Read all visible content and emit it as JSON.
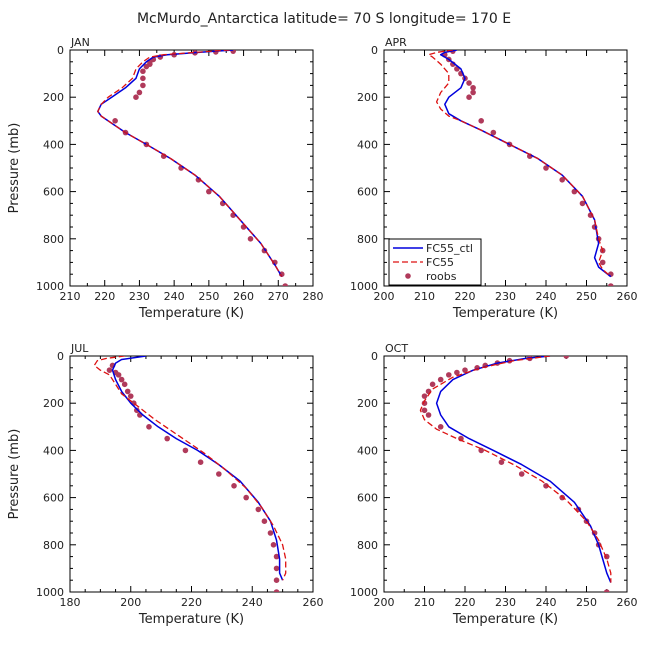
{
  "figure_title": "McMurdo_Antarctica   latitude= 70 S longitude= 170 E",
  "colors": {
    "ctl": "#0000dd",
    "fc55": "#dd1111",
    "roobs": "#b03a5b",
    "axis": "#000000"
  },
  "chart_data": [
    {
      "type": "line",
      "title": "JAN",
      "xlabel": "Temperature (K)",
      "ylabel": "Pressure (mb)",
      "xlim": [
        210,
        280
      ],
      "xticks": [
        "210",
        "220",
        "230",
        "240",
        "250",
        "260",
        "270",
        "280"
      ],
      "ylim": [
        0,
        1000
      ],
      "yticks": [
        "0",
        "200",
        "400",
        "600",
        "800",
        "1000"
      ],
      "y_inverted": true,
      "legend": null,
      "series": [
        {
          "name": "",
          "style": "ctl",
          "x": [
            257,
            247,
            238,
            234,
            232,
            230,
            229,
            226,
            222,
            219,
            218,
            219,
            222,
            226,
            232,
            239,
            246,
            253,
            259,
            265,
            269,
            271
          ],
          "y": [
            0,
            10,
            20,
            30,
            50,
            80,
            120,
            160,
            200,
            230,
            260,
            280,
            310,
            350,
            400,
            460,
            530,
            620,
            720,
            820,
            910,
            960
          ]
        },
        {
          "name": "",
          "style": "fc55",
          "x": [
            256,
            246,
            237,
            233,
            231,
            229,
            228,
            225,
            221,
            219,
            218,
            219,
            222,
            226,
            232,
            239,
            246,
            253,
            259,
            265,
            269,
            271
          ],
          "y": [
            0,
            10,
            20,
            30,
            50,
            80,
            120,
            160,
            200,
            230,
            260,
            280,
            310,
            350,
            400,
            460,
            530,
            620,
            720,
            820,
            910,
            960
          ]
        },
        {
          "name": "",
          "style": "roobs",
          "x": [
            257,
            252,
            246,
            240,
            236,
            234,
            233,
            233,
            232,
            231,
            231,
            231,
            230,
            229,
            223,
            226,
            232,
            237,
            242,
            247,
            250,
            254,
            257,
            260,
            262,
            266,
            269,
            271,
            272
          ],
          "y": [
            5,
            8,
            12,
            20,
            30,
            40,
            50,
            60,
            70,
            90,
            120,
            150,
            180,
            200,
            300,
            350,
            400,
            450,
            500,
            550,
            600,
            650,
            700,
            750,
            800,
            850,
            900,
            950,
            1000
          ]
        }
      ]
    },
    {
      "type": "line",
      "title": "APR",
      "xlabel": "Temperature (K)",
      "ylabel": "",
      "xlim": [
        200,
        260
      ],
      "xticks": [
        "200",
        "210",
        "220",
        "230",
        "240",
        "250",
        "260"
      ],
      "ylim": [
        0,
        1000
      ],
      "yticks": [
        "0",
        "200",
        "400",
        "600",
        "800",
        "1000"
      ],
      "y_inverted": true,
      "legend": {
        "position": "bottom-left",
        "entries": [
          {
            "label": "FC55_ctl",
            "style": "ctl"
          },
          {
            "label": "FC55",
            "style": "fc55"
          },
          {
            "label": "roobs",
            "style": "roobs"
          }
        ]
      },
      "series": [
        {
          "name": "FC55_ctl",
          "style": "ctl",
          "x": [
            218,
            215,
            214,
            216,
            219,
            220,
            219,
            216,
            215,
            216,
            219,
            224,
            231,
            238,
            244,
            249,
            252,
            253,
            252,
            253,
            256
          ],
          "y": [
            0,
            10,
            20,
            40,
            80,
            120,
            160,
            200,
            230,
            270,
            300,
            340,
            400,
            460,
            530,
            620,
            720,
            820,
            880,
            920,
            960
          ]
        },
        {
          "name": "FC55",
          "style": "fc55",
          "x": [
            217,
            213,
            211,
            212,
            214,
            216,
            216,
            214,
            213,
            214,
            216,
            219,
            224,
            231,
            238,
            244,
            249,
            252,
            253,
            254,
            253,
            254,
            256
          ],
          "y": [
            0,
            10,
            20,
            30,
            60,
            100,
            140,
            180,
            220,
            250,
            280,
            300,
            340,
            400,
            460,
            530,
            620,
            720,
            800,
            850,
            900,
            930,
            960
          ]
        },
        {
          "name": "roobs",
          "style": "roobs",
          "x": [
            217,
            215,
            216,
            217,
            218,
            219,
            220,
            221,
            222,
            222,
            221,
            224,
            227,
            231,
            236,
            240,
            244,
            247,
            249,
            251,
            252,
            253,
            254,
            254,
            256,
            256
          ],
          "y": [
            5,
            20,
            40,
            60,
            80,
            100,
            120,
            140,
            160,
            180,
            200,
            300,
            350,
            400,
            450,
            500,
            550,
            600,
            650,
            700,
            750,
            800,
            850,
            900,
            950,
            1000
          ]
        }
      ]
    },
    {
      "type": "line",
      "title": "JUL",
      "xlabel": "Temperature (K)",
      "ylabel": "Pressure (mb)",
      "xlim": [
        180,
        260
      ],
      "xticks": [
        "180",
        "200",
        "220",
        "240",
        "260"
      ],
      "ylim": [
        0,
        1000
      ],
      "yticks": [
        "0",
        "200",
        "400",
        "600",
        "800",
        "1000"
      ],
      "y_inverted": true,
      "legend": null,
      "series": [
        {
          "name": "",
          "style": "ctl",
          "x": [
            205,
            197,
            195,
            194,
            195,
            197,
            200,
            204,
            209,
            215,
            222,
            229,
            236,
            242,
            246,
            248,
            249,
            249,
            250
          ],
          "y": [
            0,
            15,
            30,
            60,
            100,
            150,
            200,
            250,
            300,
            350,
            400,
            460,
            530,
            620,
            700,
            780,
            860,
            920,
            950
          ]
        },
        {
          "name": "",
          "style": "fc55",
          "x": [
            198,
            192,
            189,
            188,
            190,
            193,
            195,
            197,
            201,
            208,
            216,
            224,
            231,
            238,
            243,
            247,
            250,
            251,
            251,
            250
          ],
          "y": [
            0,
            10,
            20,
            40,
            60,
            80,
            120,
            160,
            200,
            270,
            340,
            410,
            480,
            560,
            640,
            720,
            800,
            860,
            920,
            950
          ]
        },
        {
          "name": "",
          "style": "roobs",
          "x": [
            194,
            193,
            195,
            196,
            197,
            198,
            199,
            200,
            201,
            202,
            203,
            206,
            212,
            218,
            223,
            229,
            234,
            238,
            242,
            244,
            246,
            247,
            248,
            248,
            248,
            248
          ],
          "y": [
            40,
            60,
            70,
            80,
            100,
            120,
            150,
            170,
            200,
            230,
            250,
            300,
            350,
            400,
            450,
            500,
            550,
            600,
            650,
            700,
            750,
            800,
            850,
            900,
            950,
            1000
          ]
        }
      ]
    },
    {
      "type": "line",
      "title": "OCT",
      "xlabel": "Temperature (K)",
      "ylabel": "",
      "xlim": [
        200,
        260
      ],
      "xticks": [
        "200",
        "210",
        "220",
        "230",
        "240",
        "250",
        "260"
      ],
      "ylim": [
        0,
        1000
      ],
      "yticks": [
        "0",
        "200",
        "400",
        "600",
        "800",
        "1000"
      ],
      "y_inverted": true,
      "legend": null,
      "series": [
        {
          "name": "",
          "style": "ctl",
          "x": [
            241,
            235,
            228,
            222,
            217,
            214,
            213,
            214,
            216,
            221,
            227,
            234,
            241,
            247,
            251,
            253,
            254,
            255,
            256
          ],
          "y": [
            0,
            10,
            30,
            60,
            100,
            150,
            200,
            250,
            300,
            350,
            400,
            460,
            530,
            620,
            720,
            800,
            860,
            920,
            960
          ]
        },
        {
          "name": "",
          "style": "fc55",
          "x": [
            241,
            232,
            224,
            217,
            212,
            210,
            209,
            210,
            213,
            218,
            225,
            232,
            239,
            245,
            250,
            253,
            255,
            256,
            256
          ],
          "y": [
            0,
            20,
            50,
            90,
            140,
            190,
            230,
            270,
            310,
            350,
            400,
            460,
            530,
            610,
            700,
            780,
            860,
            920,
            960
          ]
        },
        {
          "name": "",
          "style": "roobs",
          "x": [
            245,
            236,
            231,
            228,
            225,
            223,
            220,
            218,
            216,
            214,
            212,
            211,
            210,
            210,
            210,
            211,
            214,
            219,
            224,
            229,
            234,
            240,
            244,
            248,
            250,
            252,
            253,
            255,
            255
          ],
          "y": [
            0,
            10,
            20,
            30,
            40,
            50,
            60,
            70,
            80,
            100,
            120,
            150,
            170,
            200,
            230,
            250,
            300,
            350,
            400,
            450,
            500,
            550,
            600,
            650,
            700,
            750,
            800,
            850,
            1000
          ]
        }
      ]
    }
  ]
}
